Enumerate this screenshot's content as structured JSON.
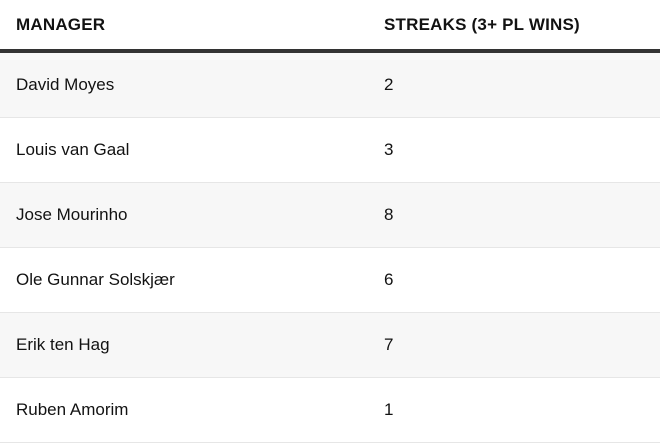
{
  "table": {
    "headers": [
      "MANAGER",
      "STREAKS (3+ PL WINS)"
    ],
    "rows": [
      [
        "David Moyes",
        "2"
      ],
      [
        "Louis van Gaal",
        "3"
      ],
      [
        "Jose Mourinho",
        "8"
      ],
      [
        "Ole Gunnar Solskjær",
        "6"
      ],
      [
        "Erik ten Hag",
        "7"
      ],
      [
        "Ruben Amorim",
        "1"
      ]
    ]
  },
  "colors": {
    "stripe": "#f7f7f7",
    "header_rule": "#333333"
  }
}
